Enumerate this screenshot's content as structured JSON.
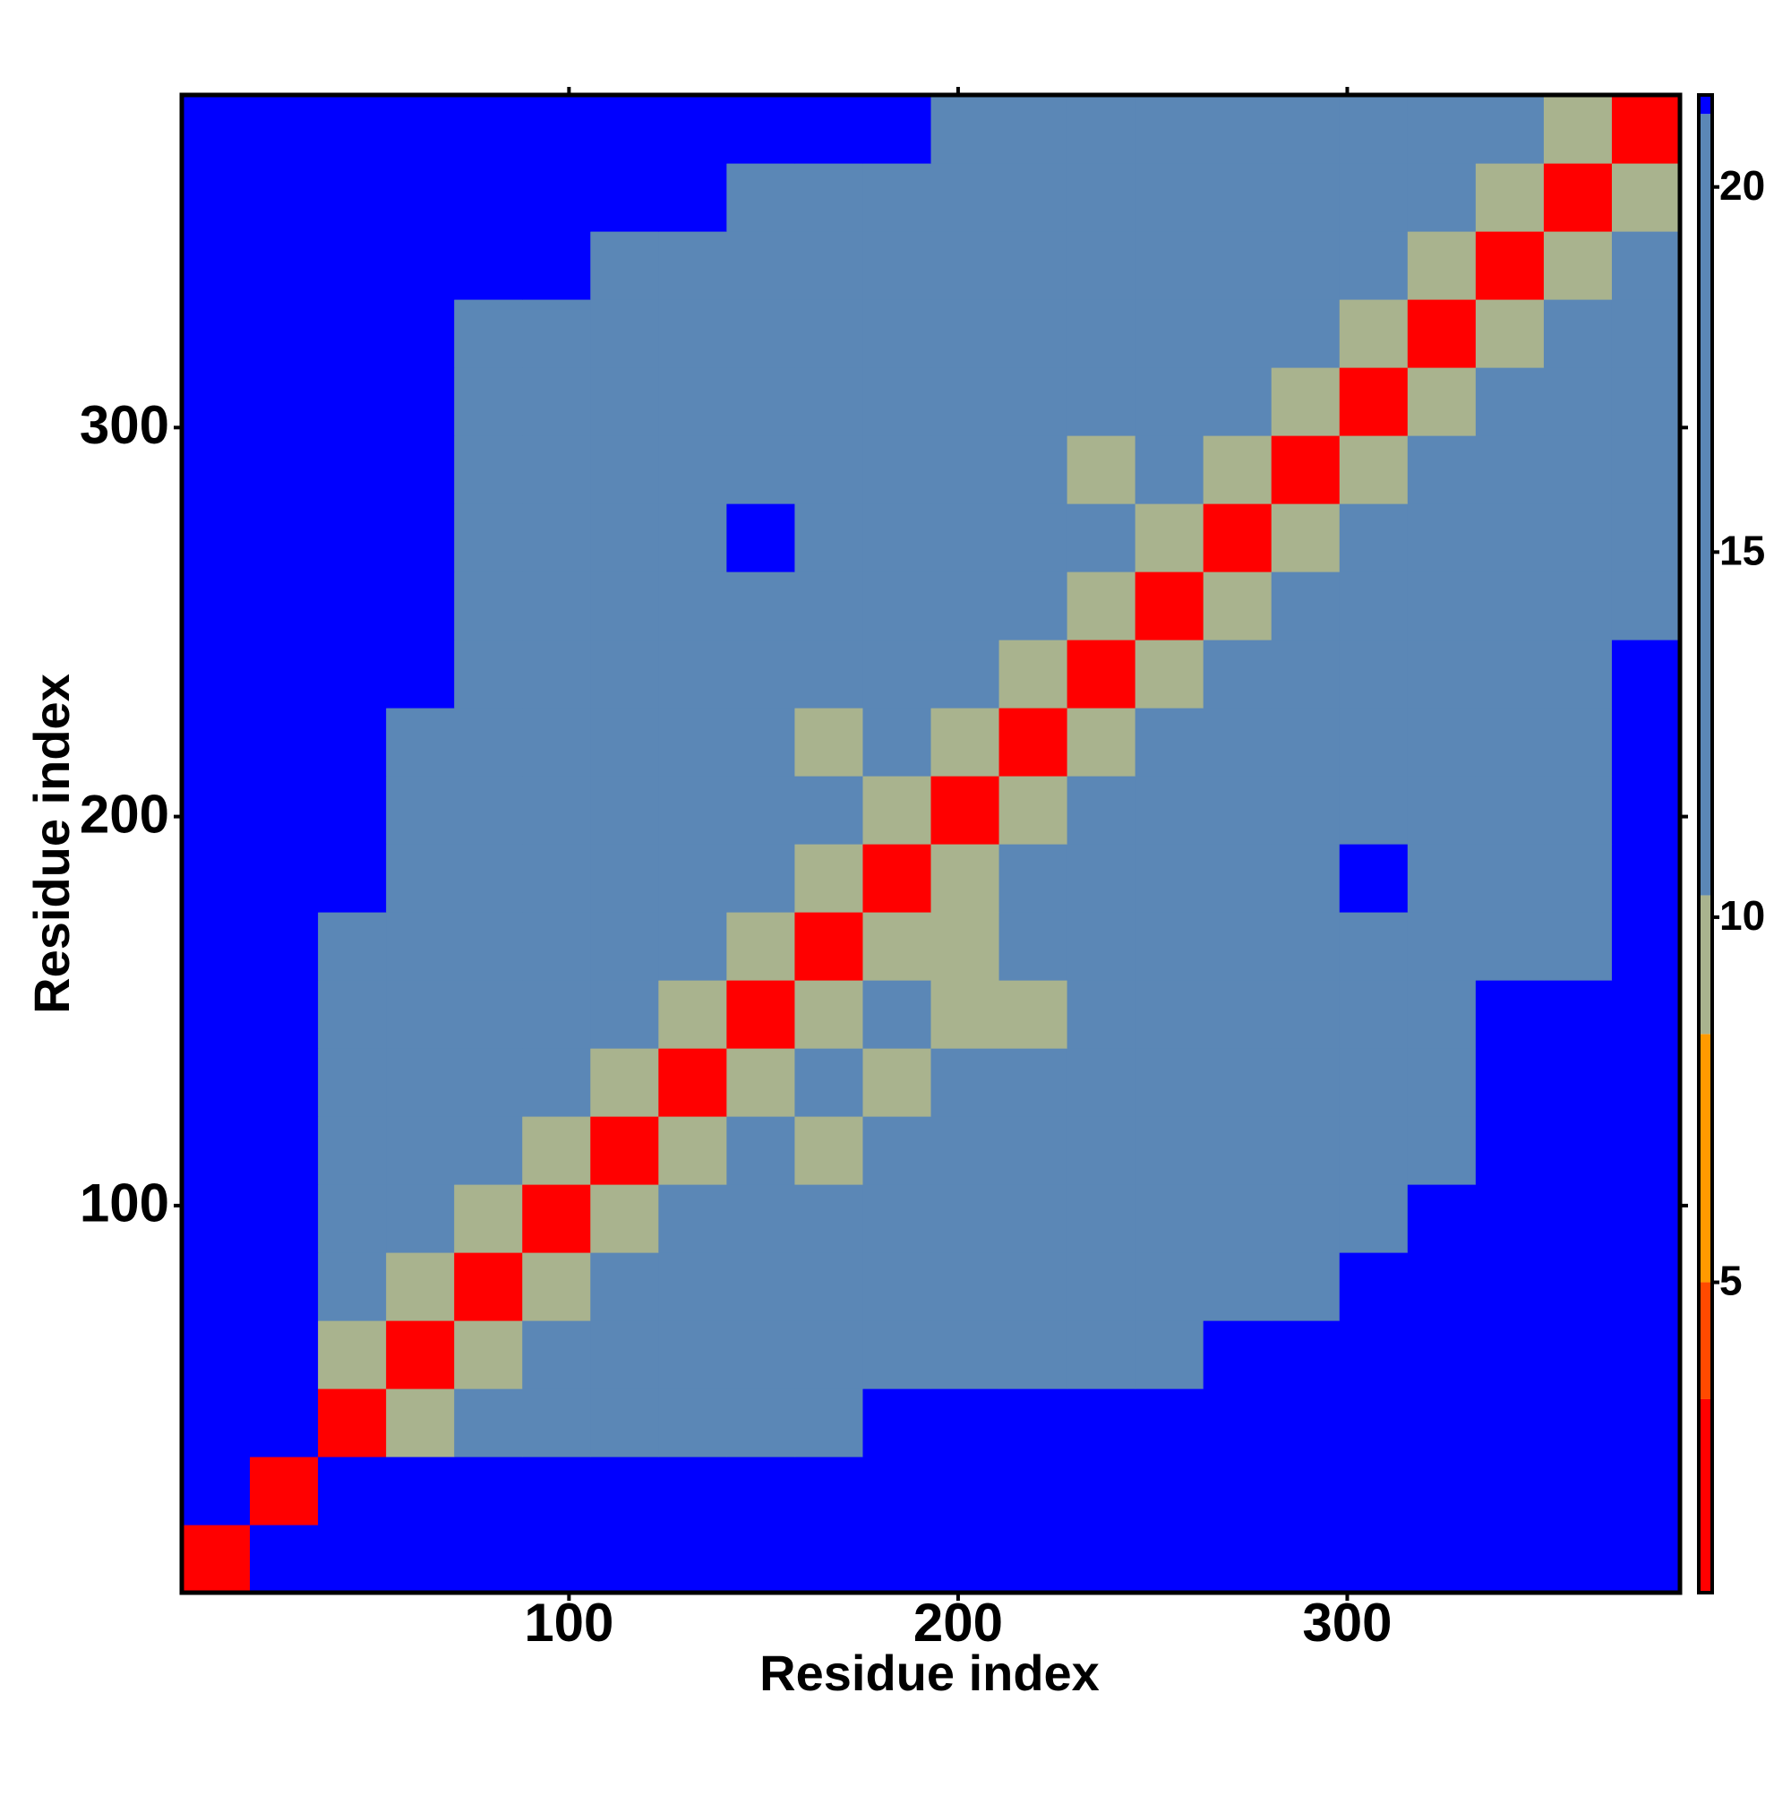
{
  "chart_data": {
    "type": "heatmap",
    "xlabel": "Residue index",
    "ylabel": "Residue index",
    "xlim": [
      0.5,
      385.5
    ],
    "ylim": [
      0.5,
      385.5
    ],
    "xticks": [
      100,
      200,
      300
    ],
    "yticks": [
      100,
      200,
      300
    ],
    "x_bins": [
      0.5,
      18,
      35.5,
      53,
      70.5,
      88,
      105.5,
      123,
      140.5,
      158,
      175.5,
      193,
      210.5,
      228,
      245.5,
      263,
      280.5,
      298,
      315.5,
      333,
      350.5,
      368,
      385.5
    ],
    "y_bins": [
      0.5,
      18,
      35.5,
      53,
      70.5,
      88,
      105.5,
      123,
      140.5,
      158,
      175.5,
      193,
      210.5,
      228,
      245.5,
      263,
      280.5,
      298,
      315.5,
      333,
      350.5,
      368,
      385.5
    ],
    "z": [
      [
        3,
        21.2,
        21.2,
        21.2,
        21.2,
        21.2,
        21.2,
        21.2,
        21.2,
        21.2,
        21.2,
        21.2,
        21.2,
        21.2,
        21.2,
        21.2,
        21.2,
        21.2,
        21.2,
        21.2,
        21.2,
        21.2
      ],
      [
        21.2,
        3,
        21.2,
        21.2,
        21.2,
        21.2,
        21.2,
        21.2,
        21.2,
        21.2,
        21.2,
        21.2,
        21.2,
        21.2,
        21.2,
        21.2,
        21.2,
        21.2,
        21.2,
        21.2,
        21.2,
        21.2
      ],
      [
        21.2,
        21.2,
        3,
        9,
        16,
        16,
        16,
        16,
        16,
        16,
        21.2,
        21.2,
        21.2,
        21.2,
        21.2,
        21.2,
        21.2,
        21.2,
        21.2,
        21.2,
        21.2,
        21.2
      ],
      [
        21.2,
        21.2,
        9,
        3,
        9,
        16,
        16,
        16,
        16,
        16,
        16,
        16,
        16,
        16,
        16,
        21.2,
        21.2,
        21.2,
        21.2,
        21.2,
        21.2,
        21.2
      ],
      [
        21.2,
        21.2,
        16,
        9,
        3,
        9,
        16,
        16,
        16,
        16,
        16,
        16,
        16,
        16,
        16,
        16,
        16,
        21.2,
        21.2,
        21.2,
        21.2,
        21.2
      ],
      [
        21.2,
        21.2,
        16,
        16,
        9,
        3,
        9,
        16,
        16,
        16,
        16,
        16,
        16,
        16,
        16,
        16,
        16,
        16,
        21.2,
        21.2,
        21.2,
        21.2
      ],
      [
        21.2,
        21.2,
        16,
        16,
        16,
        9,
        3,
        9,
        16,
        9,
        16,
        16,
        16,
        16,
        16,
        16,
        16,
        16,
        16,
        21.2,
        21.2,
        21.2
      ],
      [
        21.2,
        21.2,
        16,
        16,
        16,
        16,
        9,
        3,
        9,
        16,
        9,
        16,
        16,
        16,
        16,
        16,
        16,
        16,
        16,
        21.2,
        21.2,
        21.2
      ],
      [
        21.2,
        21.2,
        16,
        16,
        16,
        16,
        16,
        9,
        3,
        9,
        16,
        9,
        9,
        16,
        16,
        16,
        16,
        16,
        16,
        21.2,
        21.2,
        21.2
      ],
      [
        21.2,
        21.2,
        16,
        16,
        16,
        16,
        16,
        16,
        9,
        3,
        9,
        9,
        16,
        16,
        16,
        16,
        16,
        16,
        16,
        16,
        16,
        21.2
      ],
      [
        21.2,
        21.2,
        21.2,
        16,
        16,
        16,
        16,
        16,
        16,
        9,
        3,
        9,
        16,
        16,
        16,
        16,
        16,
        21.2,
        16,
        16,
        16,
        21.2
      ],
      [
        21.2,
        21.2,
        21.2,
        16,
        16,
        16,
        16,
        16,
        16,
        16,
        9,
        3,
        9,
        16,
        16,
        16,
        16,
        16,
        16,
        16,
        16,
        21.2
      ],
      [
        21.2,
        21.2,
        21.2,
        16,
        16,
        16,
        16,
        16,
        16,
        9,
        16,
        9,
        3,
        9,
        16,
        16,
        16,
        16,
        16,
        16,
        16,
        21.2
      ],
      [
        21.2,
        21.2,
        21.2,
        21.2,
        16,
        16,
        16,
        16,
        16,
        16,
        16,
        16,
        9,
        3,
        9,
        16,
        16,
        16,
        16,
        16,
        16,
        21.2
      ],
      [
        21.2,
        21.2,
        21.2,
        21.2,
        16,
        16,
        16,
        16,
        16,
        16,
        16,
        16,
        16,
        9,
        3,
        9,
        16,
        16,
        16,
        16,
        16,
        16
      ],
      [
        21.2,
        21.2,
        21.2,
        21.2,
        16,
        16,
        16,
        16,
        21.2,
        16,
        16,
        16,
        16,
        16,
        9,
        3,
        9,
        16,
        16,
        16,
        16,
        16
      ],
      [
        21.2,
        21.2,
        21.2,
        21.2,
        16,
        16,
        16,
        16,
        16,
        16,
        16,
        16,
        16,
        9,
        16,
        9,
        3,
        9,
        16,
        16,
        16,
        16
      ],
      [
        21.2,
        21.2,
        21.2,
        21.2,
        16,
        16,
        16,
        16,
        16,
        16,
        16,
        16,
        16,
        16,
        16,
        16,
        9,
        3,
        9,
        16,
        16,
        16
      ],
      [
        21.2,
        21.2,
        21.2,
        21.2,
        16,
        16,
        16,
        16,
        16,
        16,
        16,
        16,
        16,
        16,
        16,
        16,
        16,
        9,
        3,
        9,
        16,
        16
      ],
      [
        21.2,
        21.2,
        21.2,
        21.2,
        21.2,
        21.2,
        16,
        16,
        16,
        16,
        16,
        16,
        16,
        16,
        16,
        16,
        16,
        16,
        9,
        3,
        9,
        16
      ],
      [
        21.2,
        21.2,
        21.2,
        21.2,
        21.2,
        21.2,
        21.2,
        21.2,
        16,
        16,
        16,
        16,
        16,
        16,
        16,
        16,
        16,
        16,
        16,
        9,
        3,
        9
      ],
      [
        21.2,
        21.2,
        21.2,
        21.2,
        21.2,
        21.2,
        21.2,
        21.2,
        21.2,
        21.2,
        21.2,
        16,
        16,
        16,
        16,
        16,
        16,
        16,
        16,
        16,
        9,
        3
      ]
    ],
    "colorbar": {
      "lim": [
        0.75,
        21.26
      ],
      "ticks": [
        5,
        10,
        15,
        20
      ],
      "bounds": [
        3.4,
        5,
        8.4,
        10.3,
        21
      ],
      "colors": [
        "#ff0000",
        "#ff4a00",
        "#ff9a00",
        "#a9b38e",
        "#5b87b6",
        "#0000ff"
      ]
    }
  }
}
